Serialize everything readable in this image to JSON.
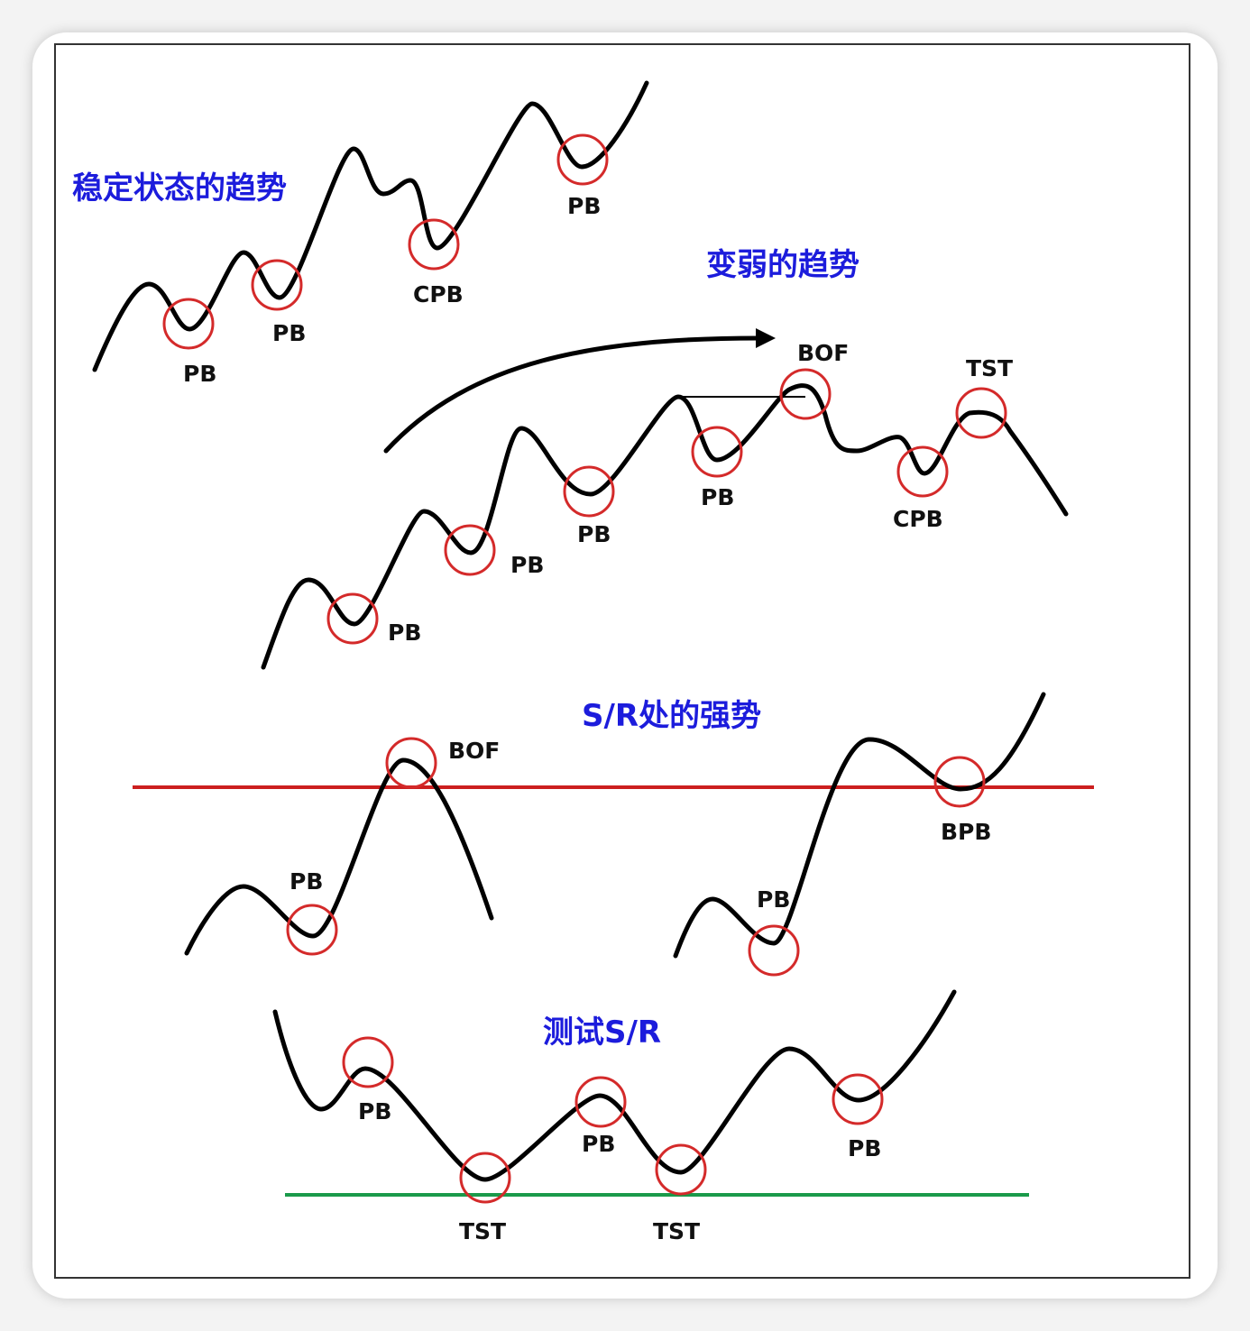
{
  "titles": {
    "steady": "稳定状态的趋势",
    "weakening": "变弱的趋势",
    "strong_sr": "S/R处的强势",
    "test_sr": "测试S/R"
  },
  "labels": {
    "steady": [
      "PB",
      "PB",
      "CPB",
      "PB"
    ],
    "weakening": [
      "PB",
      "PB",
      "PB",
      "PB",
      "BOF",
      "CPB",
      "TST"
    ],
    "strong_left": [
      "PB",
      "BOF"
    ],
    "strong_right": [
      "PB",
      "BPB"
    ],
    "test": [
      "PB",
      "PB",
      "PB",
      "TST",
      "TST"
    ]
  },
  "colors": {
    "title_text": "#1c1cdc",
    "curve": "#000000",
    "marker_circle": "#d42a2a",
    "resistance_line": "#cc1f1f",
    "support_line": "#1a9a4a",
    "frame": "#333333"
  }
}
